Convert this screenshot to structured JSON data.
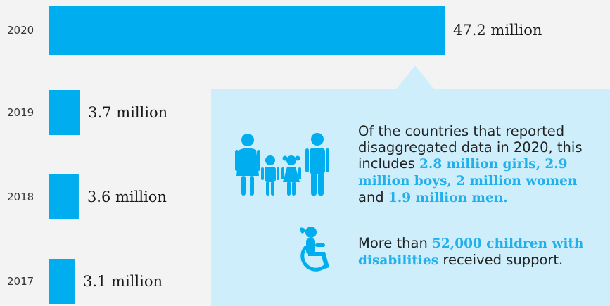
{
  "chart_data": {
    "type": "bar",
    "orientation": "horizontal",
    "categories": [
      "2020",
      "2019",
      "2018",
      "2017"
    ],
    "values": [
      47.2,
      3.7,
      3.6,
      3.1
    ],
    "value_labels": [
      "47.2 million",
      "3.7 million",
      "3.6 million",
      "3.1 million"
    ],
    "unit": "million",
    "xlim": [
      0,
      47.2
    ],
    "bar_color": "#00aeef",
    "title": "",
    "xlabel": "",
    "ylabel": ""
  },
  "callout": {
    "background_color": "#cfeefb",
    "highlight_color": "#21b0ec",
    "family_icon": "family-icon",
    "wheelchair_icon": "wheelchair-icon",
    "para1": {
      "p1": "Of the countries that reported disaggregated data in 2020, this includes ",
      "girls": "2.8 million girls,",
      "sp1": " ",
      "boys": "2.9 million boys,",
      "sp2": " ",
      "women": "2 million women",
      "and": " and ",
      "men": "1.9 million men",
      "end": "."
    },
    "para2": {
      "p1": "More than ",
      "children": "52,000 children with disabilities",
      "p2": " received support."
    }
  }
}
